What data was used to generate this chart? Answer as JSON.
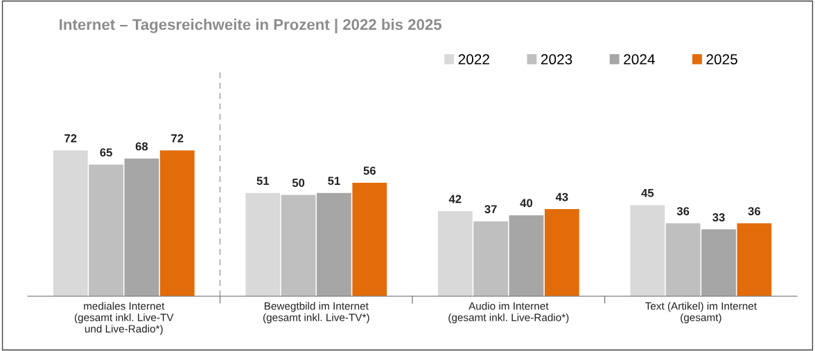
{
  "chart_data": {
    "type": "bar",
    "title": "Internet – Tagesreichweite in Prozent | 2022 bis 2025",
    "categories": [
      "mediales Internet\n(gesamt inkl. Live-TV\nund Live-Radio*)",
      "Bewegtbild im Internet\n(gesamt inkl. Live-TV*)",
      "Audio im Internet\n(gesamt inkl. Live-Radio*)",
      "Text (Artikel) im Internet\n(gesamt)"
    ],
    "series": [
      {
        "name": "2022",
        "color": "#d9d9d9",
        "values": [
          72,
          51,
          42,
          45
        ]
      },
      {
        "name": "2023",
        "color": "#bfbfbf",
        "values": [
          65,
          50,
          37,
          36
        ]
      },
      {
        "name": "2024",
        "color": "#a6a6a6",
        "values": [
          68,
          51,
          40,
          33
        ]
      },
      {
        "name": "2025",
        "color": "#e36c0a",
        "values": [
          72,
          56,
          43,
          36
        ]
      }
    ],
    "data_labels": true,
    "legend": "top right",
    "grid": false,
    "tick_labels": "x"
  }
}
